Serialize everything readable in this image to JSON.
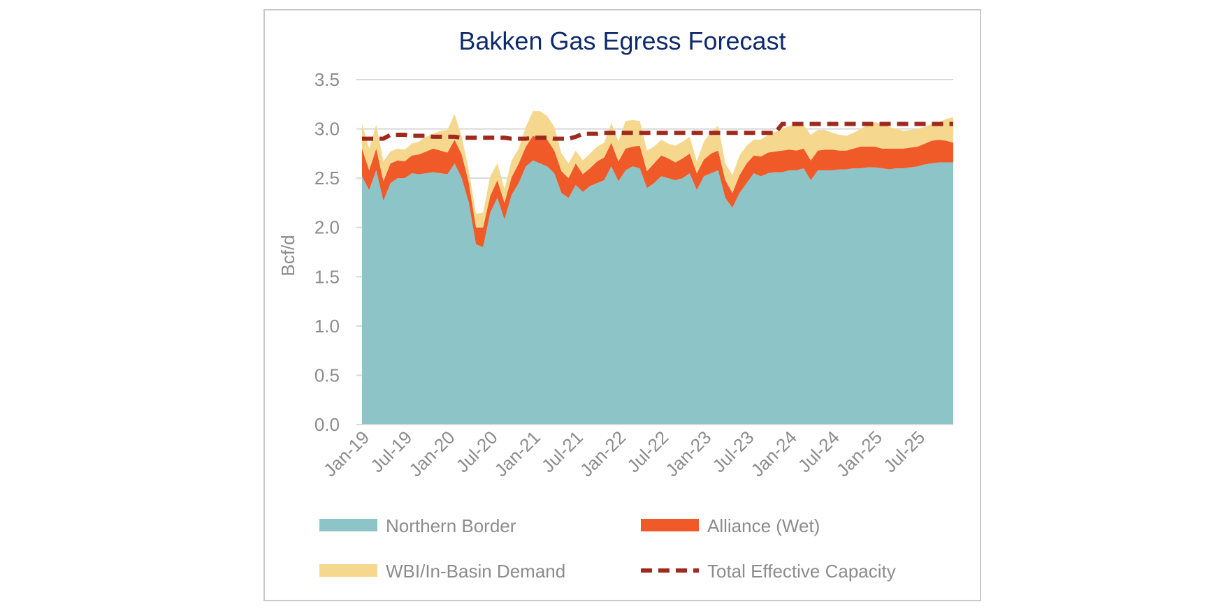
{
  "chart_data": {
    "type": "area",
    "title": "Bakken Gas Egress Forecast",
    "xlabel": "",
    "ylabel": "Bcf/d",
    "ylim": [
      0,
      3.5
    ],
    "yticks": [
      "0.0",
      "0.5",
      "1.0",
      "1.5",
      "2.0",
      "2.5",
      "3.0",
      "3.5"
    ],
    "grid": "horizontal",
    "legend_position": "bottom",
    "x_start": "Jan-19",
    "x_tick_labels": [
      "Jan-19",
      "Jul-19",
      "Jan-20",
      "Jul-20",
      "Jan-21",
      "Jul-21",
      "Jan-22",
      "Jul-22",
      "Jan-23",
      "Jul-23",
      "Jan-24",
      "Jul-24",
      "Jan-25",
      "Jul-25"
    ],
    "colors": {
      "northern_border": "#8cc4c8",
      "alliance": "#f05a28",
      "wbi": "#f5d78e",
      "capacity": "#9e2a1e",
      "grid": "#d9d9d9",
      "axis": "#d9d9d9"
    },
    "series": [
      {
        "name": "Northern Border",
        "kind": "stacked-area",
        "values": [
          2.52,
          2.38,
          2.58,
          2.27,
          2.45,
          2.5,
          2.5,
          2.55,
          2.54,
          2.55,
          2.56,
          2.55,
          2.54,
          2.65,
          2.5,
          2.25,
          1.83,
          1.8,
          2.15,
          2.3,
          2.08,
          2.33,
          2.45,
          2.62,
          2.68,
          2.65,
          2.62,
          2.55,
          2.35,
          2.3,
          2.43,
          2.36,
          2.42,
          2.45,
          2.48,
          2.62,
          2.47,
          2.58,
          2.62,
          2.6,
          2.4,
          2.45,
          2.52,
          2.5,
          2.48,
          2.5,
          2.55,
          2.38,
          2.52,
          2.55,
          2.58,
          2.3,
          2.2,
          2.35,
          2.45,
          2.55,
          2.52,
          2.55,
          2.56,
          2.56,
          2.58,
          2.58,
          2.6,
          2.48,
          2.58,
          2.58,
          2.58,
          2.59,
          2.59,
          2.6,
          2.6,
          2.61,
          2.61,
          2.6,
          2.59,
          2.6,
          2.6,
          2.61,
          2.62,
          2.64,
          2.65,
          2.66,
          2.66,
          2.66
        ]
      },
      {
        "name": "Alliance (Wet)",
        "kind": "stacked-area",
        "values": [
          0.28,
          0.2,
          0.22,
          0.2,
          0.2,
          0.18,
          0.17,
          0.18,
          0.2,
          0.22,
          0.24,
          0.23,
          0.22,
          0.24,
          0.24,
          0.2,
          0.17,
          0.2,
          0.17,
          0.18,
          0.17,
          0.18,
          0.2,
          0.2,
          0.25,
          0.25,
          0.27,
          0.23,
          0.22,
          0.2,
          0.22,
          0.18,
          0.18,
          0.22,
          0.23,
          0.24,
          0.2,
          0.22,
          0.2,
          0.23,
          0.17,
          0.2,
          0.21,
          0.2,
          0.18,
          0.2,
          0.2,
          0.17,
          0.17,
          0.2,
          0.2,
          0.18,
          0.15,
          0.18,
          0.2,
          0.18,
          0.2,
          0.21,
          0.21,
          0.22,
          0.21,
          0.2,
          0.2,
          0.2,
          0.2,
          0.21,
          0.21,
          0.19,
          0.19,
          0.2,
          0.22,
          0.21,
          0.21,
          0.2,
          0.21,
          0.2,
          0.2,
          0.2,
          0.2,
          0.21,
          0.23,
          0.23,
          0.22,
          0.2
        ]
      },
      {
        "name": "WBI/In-Basin Demand",
        "kind": "stacked-area",
        "values": [
          0.25,
          0.22,
          0.24,
          0.2,
          0.12,
          0.12,
          0.12,
          0.12,
          0.13,
          0.15,
          0.15,
          0.2,
          0.23,
          0.26,
          0.18,
          0.13,
          0.14,
          0.15,
          0.2,
          0.17,
          0.14,
          0.17,
          0.15,
          0.2,
          0.25,
          0.28,
          0.24,
          0.24,
          0.18,
          0.15,
          0.13,
          0.14,
          0.15,
          0.15,
          0.15,
          0.2,
          0.2,
          0.28,
          0.27,
          0.25,
          0.21,
          0.17,
          0.16,
          0.15,
          0.17,
          0.17,
          0.17,
          0.12,
          0.18,
          0.22,
          0.25,
          0.17,
          0.18,
          0.2,
          0.18,
          0.16,
          0.17,
          0.18,
          0.2,
          0.22,
          0.24,
          0.26,
          0.24,
          0.26,
          0.21,
          0.2,
          0.17,
          0.16,
          0.15,
          0.16,
          0.18,
          0.22,
          0.25,
          0.25,
          0.22,
          0.2,
          0.18,
          0.18,
          0.18,
          0.17,
          0.17,
          0.18,
          0.22,
          0.26
        ]
      },
      {
        "name": "Total Effective Capacity",
        "kind": "dashed-line",
        "values": [
          2.9,
          2.9,
          2.9,
          2.9,
          2.94,
          2.94,
          2.94,
          2.93,
          2.93,
          2.93,
          2.92,
          2.92,
          2.92,
          2.92,
          2.91,
          2.91,
          2.91,
          2.91,
          2.91,
          2.91,
          2.91,
          2.9,
          2.9,
          2.9,
          2.91,
          2.91,
          2.91,
          2.9,
          2.9,
          2.9,
          2.92,
          2.95,
          2.95,
          2.95,
          2.96,
          2.96,
          2.96,
          2.96,
          2.96,
          2.96,
          2.96,
          2.96,
          2.96,
          2.96,
          2.96,
          2.96,
          2.96,
          2.96,
          2.96,
          2.96,
          2.96,
          2.96,
          2.96,
          2.96,
          2.96,
          2.96,
          2.96,
          2.96,
          2.96,
          3.05,
          3.05,
          3.05,
          3.05,
          3.05,
          3.05,
          3.05,
          3.05,
          3.05,
          3.05,
          3.05,
          3.05,
          3.05,
          3.05,
          3.05,
          3.05,
          3.05,
          3.05,
          3.05,
          3.05,
          3.05,
          3.05,
          3.05,
          3.05,
          3.05
        ]
      }
    ]
  }
}
